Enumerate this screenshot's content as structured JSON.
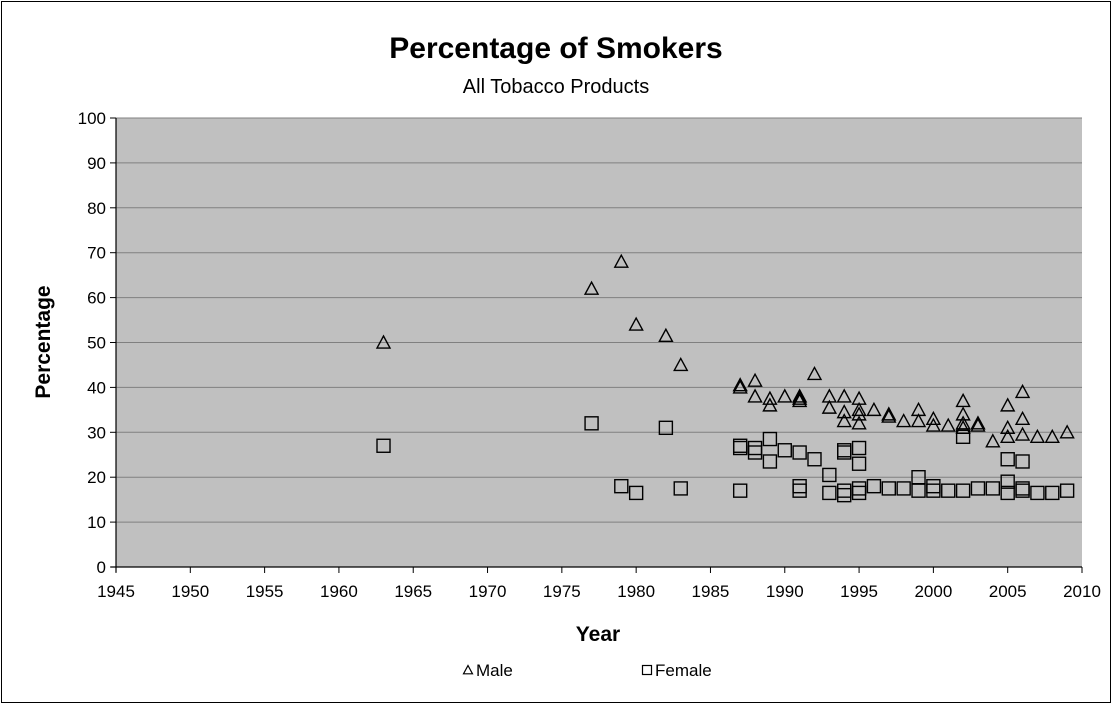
{
  "chart_data": {
    "type": "scatter",
    "title": "Percentage of Smokers",
    "subtitle": "All Tobacco Products",
    "xlabel": "Year",
    "ylabel": "Percentage",
    "xlim": [
      1945,
      2010
    ],
    "ylim": [
      0,
      100
    ],
    "x_ticks": [
      1945,
      1950,
      1955,
      1960,
      1965,
      1970,
      1975,
      1980,
      1985,
      1990,
      1995,
      2000,
      2005,
      2010
    ],
    "y_ticks": [
      0,
      10,
      20,
      30,
      40,
      50,
      60,
      70,
      80,
      90,
      100
    ],
    "grid": true,
    "legend_position": "bottom",
    "colors": {
      "plot_background": "#c0c0c0",
      "gridline": "#808080",
      "marker_stroke": "#000000",
      "marker_fill": "#ffffff"
    },
    "series": [
      {
        "name": "Male",
        "marker": "triangle",
        "points": [
          [
            1963,
            50
          ],
          [
            1977,
            62
          ],
          [
            1979,
            68
          ],
          [
            1980,
            54
          ],
          [
            1982,
            51.5
          ],
          [
            1983,
            45
          ],
          [
            1987,
            40
          ],
          [
            1987,
            40.5
          ],
          [
            1988,
            41.5
          ],
          [
            1988,
            38
          ],
          [
            1989,
            37.5
          ],
          [
            1989,
            36
          ],
          [
            1990,
            38
          ],
          [
            1991,
            38
          ],
          [
            1991,
            37
          ],
          [
            1991,
            37.5
          ],
          [
            1992,
            43
          ],
          [
            1993,
            38
          ],
          [
            1993,
            35.5
          ],
          [
            1994,
            38
          ],
          [
            1994,
            34.5
          ],
          [
            1994,
            32.5
          ],
          [
            1995,
            37.5
          ],
          [
            1995,
            35
          ],
          [
            1995,
            34
          ],
          [
            1995,
            32
          ],
          [
            1996,
            35
          ],
          [
            1997,
            34
          ],
          [
            1997,
            33.5
          ],
          [
            1998,
            32.5
          ],
          [
            1999,
            35
          ],
          [
            1999,
            32.5
          ],
          [
            2000,
            33
          ],
          [
            2000,
            31.5
          ],
          [
            2001,
            31.5
          ],
          [
            2002,
            37
          ],
          [
            2002,
            34
          ],
          [
            2002,
            32
          ],
          [
            2002,
            31
          ],
          [
            2003,
            32
          ],
          [
            2003,
            31.5
          ],
          [
            2004,
            28
          ],
          [
            2005,
            36
          ],
          [
            2005,
            31
          ],
          [
            2005,
            29
          ],
          [
            2006,
            39
          ],
          [
            2006,
            33
          ],
          [
            2006,
            29.5
          ],
          [
            2007,
            29
          ],
          [
            2008,
            29
          ],
          [
            2009,
            30
          ]
        ]
      },
      {
        "name": "Female",
        "marker": "square",
        "points": [
          [
            1963,
            27
          ],
          [
            1977,
            32
          ],
          [
            1979,
            18
          ],
          [
            1980,
            16.5
          ],
          [
            1982,
            31
          ],
          [
            1983,
            17.5
          ],
          [
            1987,
            27
          ],
          [
            1987,
            26.5
          ],
          [
            1987,
            17
          ],
          [
            1988,
            26.5
          ],
          [
            1988,
            25.5
          ],
          [
            1989,
            28.5
          ],
          [
            1989,
            23.5
          ],
          [
            1990,
            26
          ],
          [
            1991,
            25.5
          ],
          [
            1991,
            18
          ],
          [
            1991,
            17
          ],
          [
            1992,
            24
          ],
          [
            1993,
            20.5
          ],
          [
            1993,
            16.5
          ],
          [
            1994,
            26
          ],
          [
            1994,
            25.5
          ],
          [
            1994,
            17
          ],
          [
            1994,
            16
          ],
          [
            1995,
            26.5
          ],
          [
            1995,
            23
          ],
          [
            1995,
            17.5
          ],
          [
            1995,
            16.5
          ],
          [
            1996,
            18
          ],
          [
            1997,
            17.5
          ],
          [
            1998,
            17.5
          ],
          [
            1999,
            20
          ],
          [
            1999,
            17
          ],
          [
            2000,
            18
          ],
          [
            2000,
            17
          ],
          [
            2001,
            17
          ],
          [
            2002,
            29
          ],
          [
            2002,
            17
          ],
          [
            2003,
            17.5
          ],
          [
            2004,
            17.5
          ],
          [
            2005,
            24
          ],
          [
            2005,
            19
          ],
          [
            2005,
            16.5
          ],
          [
            2006,
            23.5
          ],
          [
            2006,
            17.5
          ],
          [
            2006,
            17
          ],
          [
            2007,
            16.5
          ],
          [
            2008,
            16.5
          ],
          [
            2009,
            17
          ]
        ]
      }
    ]
  }
}
